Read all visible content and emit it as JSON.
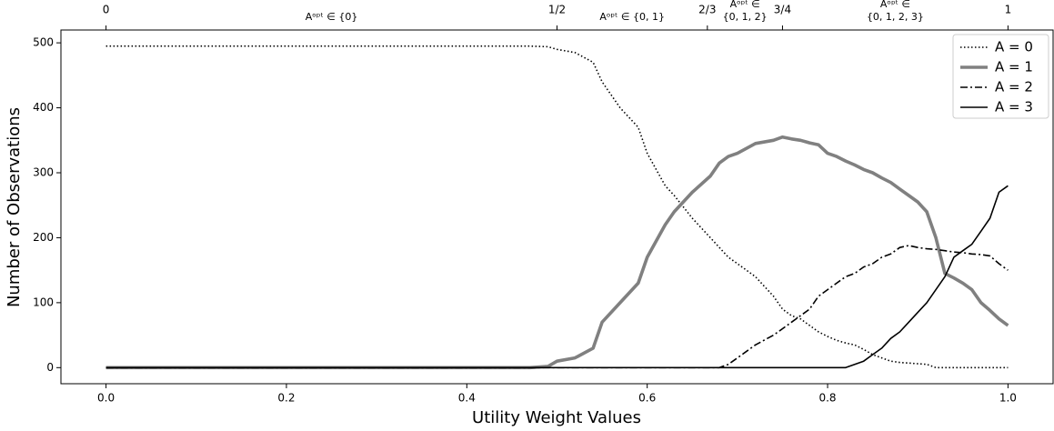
{
  "chart_data": {
    "type": "line",
    "xlabel": "Utility Weight Values",
    "ylabel": "Number of Observations",
    "x": [
      0,
      0.47,
      0.49,
      0.5,
      0.52,
      0.54,
      0.55,
      0.57,
      0.59,
      0.6,
      0.62,
      0.63,
      0.65,
      0.67,
      0.68,
      0.69,
      0.7,
      0.72,
      0.74,
      0.75,
      0.76,
      0.77,
      0.78,
      0.79,
      0.8,
      0.81,
      0.82,
      0.83,
      0.84,
      0.85,
      0.86,
      0.87,
      0.88,
      0.89,
      0.9,
      0.91,
      0.92,
      0.93,
      0.94,
      0.95,
      0.96,
      0.97,
      0.98,
      0.99,
      1
    ],
    "series": [
      {
        "name": "A = 0",
        "color": "#000000",
        "linestyle": "dotted",
        "values": [
          495,
          495,
          494,
          490,
          485,
          470,
          440,
          400,
          370,
          330,
          280,
          265,
          230,
          200,
          185,
          170,
          160,
          140,
          110,
          90,
          80,
          75,
          65,
          55,
          48,
          42,
          38,
          35,
          28,
          20,
          15,
          10,
          8,
          7,
          6,
          5,
          0,
          0,
          0,
          0,
          0,
          0,
          0,
          0,
          0
        ]
      },
      {
        "name": "A = 1",
        "color": "#808080",
        "linestyle": "solid-thick",
        "values": [
          0,
          0,
          2,
          10,
          15,
          30,
          70,
          100,
          130,
          170,
          220,
          240,
          270,
          295,
          315,
          325,
          330,
          345,
          350,
          355,
          352,
          350,
          346,
          343,
          330,
          325,
          318,
          312,
          305,
          300,
          292,
          285,
          275,
          265,
          255,
          240,
          200,
          145,
          138,
          130,
          120,
          100,
          88,
          75,
          65
        ]
      },
      {
        "name": "A = 2",
        "color": "#000000",
        "linestyle": "dashdot",
        "values": [
          0,
          0,
          0,
          0,
          0,
          0,
          0,
          0,
          0,
          0,
          0,
          0,
          0,
          0,
          0,
          5,
          15,
          35,
          50,
          60,
          70,
          80,
          90,
          110,
          120,
          130,
          140,
          145,
          155,
          160,
          170,
          175,
          185,
          188,
          185,
          183,
          182,
          180,
          178,
          177,
          175,
          174,
          172,
          160,
          150
        ]
      },
      {
        "name": "A = 3",
        "color": "#000000",
        "linestyle": "solid",
        "values": [
          0,
          0,
          0,
          0,
          0,
          0,
          0,
          0,
          0,
          0,
          0,
          0,
          0,
          0,
          0,
          0,
          0,
          0,
          0,
          0,
          0,
          0,
          0,
          0,
          0,
          0,
          0,
          5,
          10,
          20,
          30,
          45,
          55,
          70,
          85,
          100,
          120,
          140,
          170,
          180,
          190,
          210,
          230,
          270,
          280
        ]
      }
    ],
    "xlim": [
      -0.05,
      1.05
    ],
    "ylim": [
      -24.75,
      519.75
    ],
    "xticks": [
      {
        "value": 0,
        "label": "0.0"
      },
      {
        "value": 0.2,
        "label": "0.2"
      },
      {
        "value": 0.4,
        "label": "0.4"
      },
      {
        "value": 0.6,
        "label": "0.6"
      },
      {
        "value": 0.8,
        "label": "0.8"
      },
      {
        "value": 1,
        "label": "1.0"
      }
    ],
    "yticks": [
      0,
      100,
      200,
      300,
      400,
      500
    ],
    "top_xticks": [
      0,
      {
        "value": 0.5,
        "label": "1/2"
      },
      {
        "value": 0.6667,
        "label": "2/3"
      },
      {
        "value": 0.75,
        "label": "3/4"
      },
      1
    ],
    "annotations": [
      {
        "lines": [
          "Aᵒᵖᵗ ∈ {0}"
        ]
      },
      {
        "lines": [
          "Aᵒᵖᵗ ∈ {0, 1}"
        ]
      },
      {
        "lines": [
          "Aᵒᵖᵗ ∈",
          "{0, 1, 2}"
        ]
      },
      {
        "lines": [
          "Aᵒᵖᵗ ∈",
          "{0, 1, 2, 3}"
        ]
      }
    ],
    "legend": "upper right"
  }
}
